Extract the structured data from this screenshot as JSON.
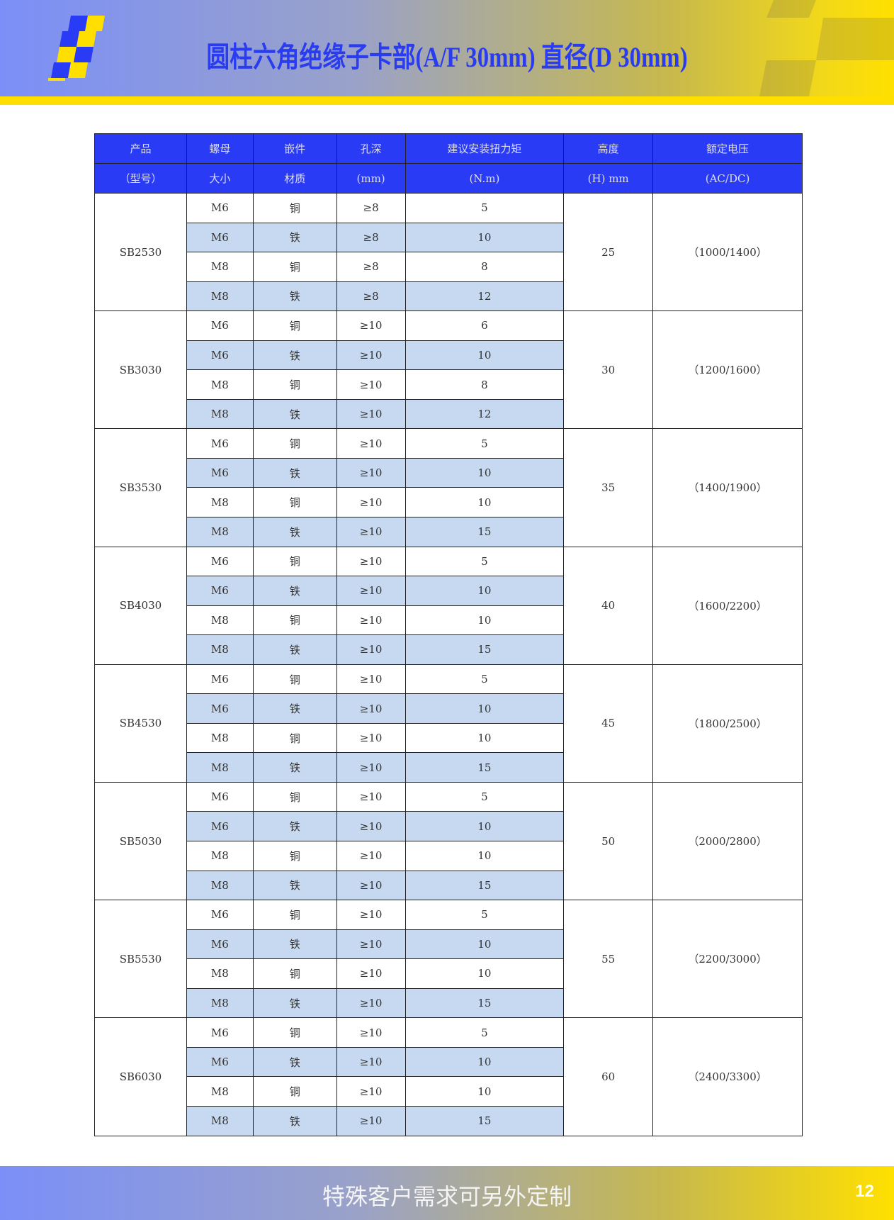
{
  "header": {
    "title": "圆柱六角绝缘子卡部(A/F 30mm) 直径(D 30mm)"
  },
  "table": {
    "headers_row1": [
      "产品",
      "螺母",
      "嵌件",
      "孔深",
      "建议安装扭力矩",
      "高度",
      "额定电压"
    ],
    "headers_row2": [
      "（型号）",
      "大小",
      "材质",
      "(mm)",
      "(N.m)",
      "(H) mm",
      "(AC/DC)"
    ],
    "groups": [
      {
        "model": "SB2530",
        "height": "25",
        "voltage": "（1000/1400）",
        "rows": [
          [
            "M6",
            "铜",
            "≥8",
            "5"
          ],
          [
            "M6",
            "铁",
            "≥8",
            "10"
          ],
          [
            "M8",
            "铜",
            "≥8",
            "8"
          ],
          [
            "M8",
            "铁",
            "≥8",
            "12"
          ]
        ]
      },
      {
        "model": "SB3030",
        "height": "30",
        "voltage": "（1200/1600）",
        "rows": [
          [
            "M6",
            "铜",
            "≥10",
            "6"
          ],
          [
            "M6",
            "铁",
            "≥10",
            "10"
          ],
          [
            "M8",
            "铜",
            "≥10",
            "8"
          ],
          [
            "M8",
            "铁",
            "≥10",
            "12"
          ]
        ]
      },
      {
        "model": "SB3530",
        "height": "35",
        "voltage": "（1400/1900）",
        "rows": [
          [
            "M6",
            "铜",
            "≥10",
            "5"
          ],
          [
            "M6",
            "铁",
            "≥10",
            "10"
          ],
          [
            "M8",
            "铜",
            "≥10",
            "10"
          ],
          [
            "M8",
            "铁",
            "≥10",
            "15"
          ]
        ]
      },
      {
        "model": "SB4030",
        "height": "40",
        "voltage": "（1600/2200）",
        "rows": [
          [
            "M6",
            "铜",
            "≥10",
            "5"
          ],
          [
            "M6",
            "铁",
            "≥10",
            "10"
          ],
          [
            "M8",
            "铜",
            "≥10",
            "10"
          ],
          [
            "M8",
            "铁",
            "≥10",
            "15"
          ]
        ]
      },
      {
        "model": "SB4530",
        "height": "45",
        "voltage": "（1800/2500）",
        "rows": [
          [
            "M6",
            "铜",
            "≥10",
            "5"
          ],
          [
            "M6",
            "铁",
            "≥10",
            "10"
          ],
          [
            "M8",
            "铜",
            "≥10",
            "10"
          ],
          [
            "M8",
            "铁",
            "≥10",
            "15"
          ]
        ]
      },
      {
        "model": "SB5030",
        "height": "50",
        "voltage": "（2000/2800）",
        "rows": [
          [
            "M6",
            "铜",
            "≥10",
            "5"
          ],
          [
            "M6",
            "铁",
            "≥10",
            "10"
          ],
          [
            "M8",
            "铜",
            "≥10",
            "10"
          ],
          [
            "M8",
            "铁",
            "≥10",
            "15"
          ]
        ]
      },
      {
        "model": "SB5530",
        "height": "55",
        "voltage": "（2200/3000）",
        "rows": [
          [
            "M6",
            "铜",
            "≥10",
            "5"
          ],
          [
            "M6",
            "铁",
            "≥10",
            "10"
          ],
          [
            "M8",
            "铜",
            "≥10",
            "10"
          ],
          [
            "M8",
            "铁",
            "≥10",
            "15"
          ]
        ]
      },
      {
        "model": "SB6030",
        "height": "60",
        "voltage": "（2400/3300）",
        "rows": [
          [
            "M6",
            "铜",
            "≥10",
            "5"
          ],
          [
            "M6",
            "铁",
            "≥10",
            "10"
          ],
          [
            "M8",
            "铜",
            "≥10",
            "10"
          ],
          [
            "M8",
            "铁",
            "≥10",
            "15"
          ]
        ]
      }
    ]
  },
  "footer": {
    "text": "特殊客户需求可另外定制",
    "page_number": "12"
  },
  "colors": {
    "header_blue": "#2a3bf5",
    "stripe_row": "#c6d9f0",
    "accent_yellow": "#ffdf00"
  }
}
